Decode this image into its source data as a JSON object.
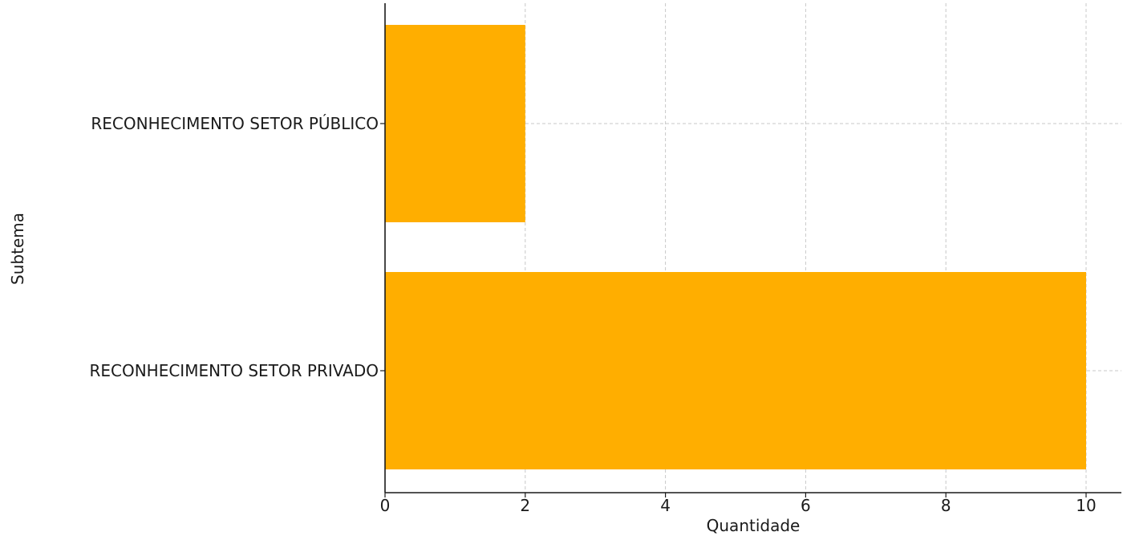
{
  "chart_data": {
    "type": "bar",
    "orientation": "horizontal",
    "categories": [
      "RECONHECIMENTO SETOR PÚBLICO",
      "RECONHECIMENTO SETOR PRIVADO"
    ],
    "values": [
      2,
      10
    ],
    "title": "",
    "xlabel": "Quantidade",
    "ylabel": "Subtema",
    "xlim": [
      0,
      10.5
    ],
    "xticks": [
      "0",
      "2",
      "4",
      "6",
      "8",
      "10"
    ],
    "grid": true,
    "bar_color": "#FFAE00"
  }
}
